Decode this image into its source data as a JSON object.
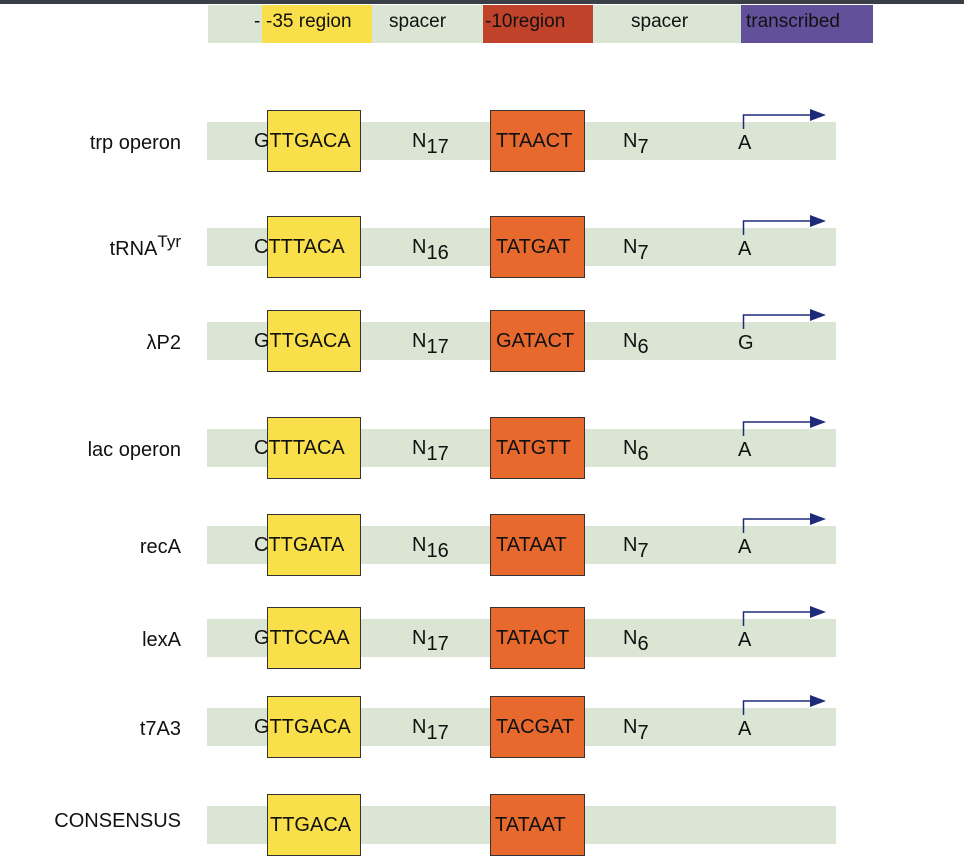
{
  "header": {
    "minus35": "-35 region",
    "spacer1": "spacer",
    "minus10": "-10region",
    "spacer2": "spacer",
    "transcribed": "transcribed"
  },
  "colors": {
    "band": "#dbe5d4",
    "minus35": "#f9e04b",
    "minus10_header": "#c0422a",
    "minus10_box": "#e8692e",
    "transcribed": "#62509a",
    "arrow": "#1e2a7a"
  },
  "rows": [
    {
      "name": "trp operon",
      "sup": "",
      "m35": "GTTGACA",
      "n1": "17",
      "m10": "TTAACT",
      "n2": "7",
      "start": "A"
    },
    {
      "name": "tRNA",
      "sup": "Tyr",
      "m35": "CTTTACA",
      "n1": "16",
      "m10": "TATGAT",
      "n2": "7",
      "start": "A"
    },
    {
      "name": "λP2",
      "sup": "",
      "m35": "GTTGACA",
      "n1": "17",
      "m10": "GATACT",
      "n2": "6",
      "start": "G"
    },
    {
      "name": "lac operon",
      "sup": "",
      "m35": "CTTTACA",
      "n1": "17",
      "m10": "TATGTT",
      "n2": "6",
      "start": "A"
    },
    {
      "name": "recA",
      "sup": "",
      "m35": "CTTGATA",
      "n1": "16",
      "m10": "TATAAT",
      "n2": "7",
      "start": "A"
    },
    {
      "name": "lexA",
      "sup": "",
      "m35": "GTTCCAA",
      "n1": "17",
      "m10": "TATACT",
      "n2": "6",
      "start": "A"
    },
    {
      "name": "t7A3",
      "sup": "",
      "m35": "GTTGACA",
      "n1": "17",
      "m10": "TACGAT",
      "n2": "7",
      "start": "A"
    }
  ],
  "n_letter": "N",
  "consensus": {
    "name": "CONSENSUS",
    "m35": "TTGACA",
    "m10": "TATAAT"
  }
}
